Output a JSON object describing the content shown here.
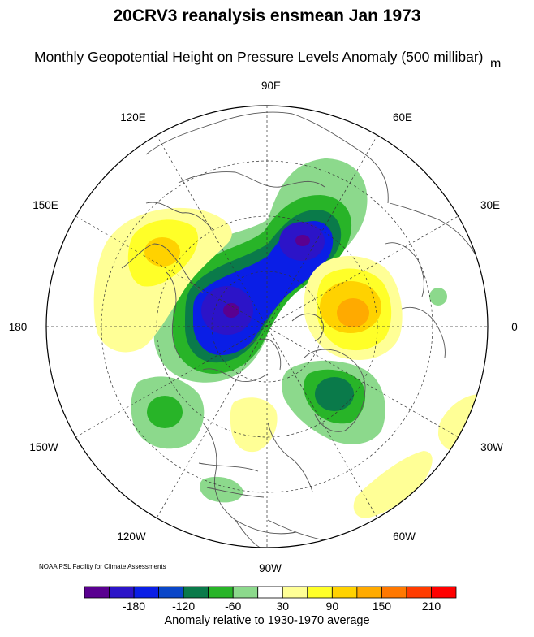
{
  "title": "20CRV3 reanalysis ensmean Jan 1973",
  "subtitle": "Monthly Geopotential Height on Pressure Levels Anomaly (500 millibar)",
  "unit": "m",
  "credit": "NOAA PSL Facility for Climate Assessments",
  "colorbar": {
    "caption": "Anomaly relative to 1930-1970 average",
    "colors": [
      "#5a0090",
      "#2c14c8",
      "#0a1ee6",
      "#0a46c8",
      "#0a7a4a",
      "#28b428",
      "#8cd98c",
      "#ffffff",
      "#ffff96",
      "#ffff28",
      "#ffd200",
      "#ffaa00",
      "#ff7800",
      "#ff3c00",
      "#ff0000"
    ],
    "labels": [
      "-180",
      "-120",
      "-60",
      "30",
      "90",
      "150",
      "210"
    ]
  },
  "longitude_labels": {
    "top": "90E",
    "top_right": "60E",
    "right_upper": "30E",
    "right": "0",
    "right_lower": "30W",
    "bottom_right": "60W",
    "bottom": "90W",
    "bottom_left": "120W",
    "left_lower": "150W",
    "left": "180",
    "left_upper": "150E",
    "top_left": "120E"
  }
}
